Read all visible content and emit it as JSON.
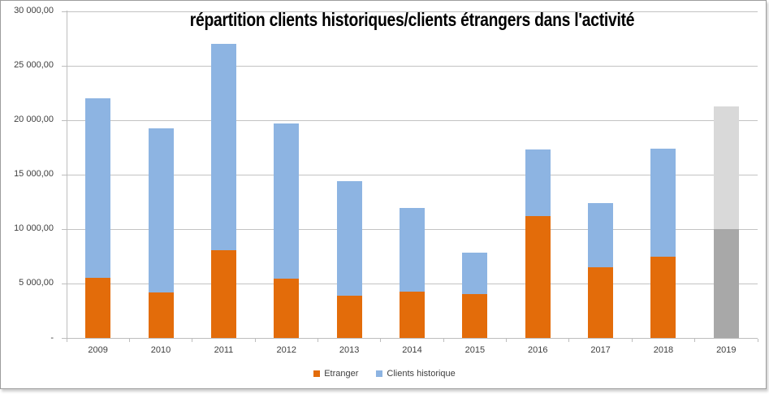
{
  "chart_data": {
    "type": "bar",
    "stacked": true,
    "title": "répartition clients historiques/clients étrangers dans l'activité",
    "categories": [
      "2009",
      "2010",
      "2011",
      "2012",
      "2013",
      "2014",
      "2015",
      "2016",
      "2017",
      "2018",
      "2019"
    ],
    "series": [
      {
        "name": "Etranger",
        "color": "#e36c0a",
        "values": [
          5550,
          4200,
          8050,
          5450,
          3900,
          4250,
          4050,
          11200,
          6500,
          7500,
          10000
        ]
      },
      {
        "name": "Clients historique",
        "color": "#8db4e2",
        "values": [
          16500,
          15050,
          19000,
          14250,
          10550,
          7700,
          3850,
          6100,
          5900,
          9900,
          11300
        ]
      }
    ],
    "totals": [
      22050,
      19250,
      27050,
      19700,
      14450,
      11950,
      7900,
      17300,
      12400,
      17400,
      21300
    ],
    "forecast": {
      "category": "2019",
      "segment_colors": [
        "#a8a8a8",
        "#d9d9d9"
      ]
    },
    "xlabel": "",
    "ylabel": "",
    "ylim": [
      0,
      30000
    ],
    "ytick_step": 5000,
    "ytick_labels": [
      "-",
      "5 000,00",
      "10 000,00",
      "15 000,00",
      "20 000,00",
      "25 000,00",
      "30 000,00"
    ],
    "grid": true,
    "legend_position": "bottom"
  },
  "style": {
    "gridline_color": "#c3c3c3",
    "axis_color": "#bdbdbd",
    "text_color": "#3f3f3f",
    "title_color": "#000000",
    "frame_border_color": "#9d9d9d",
    "background": "#ffffff"
  }
}
